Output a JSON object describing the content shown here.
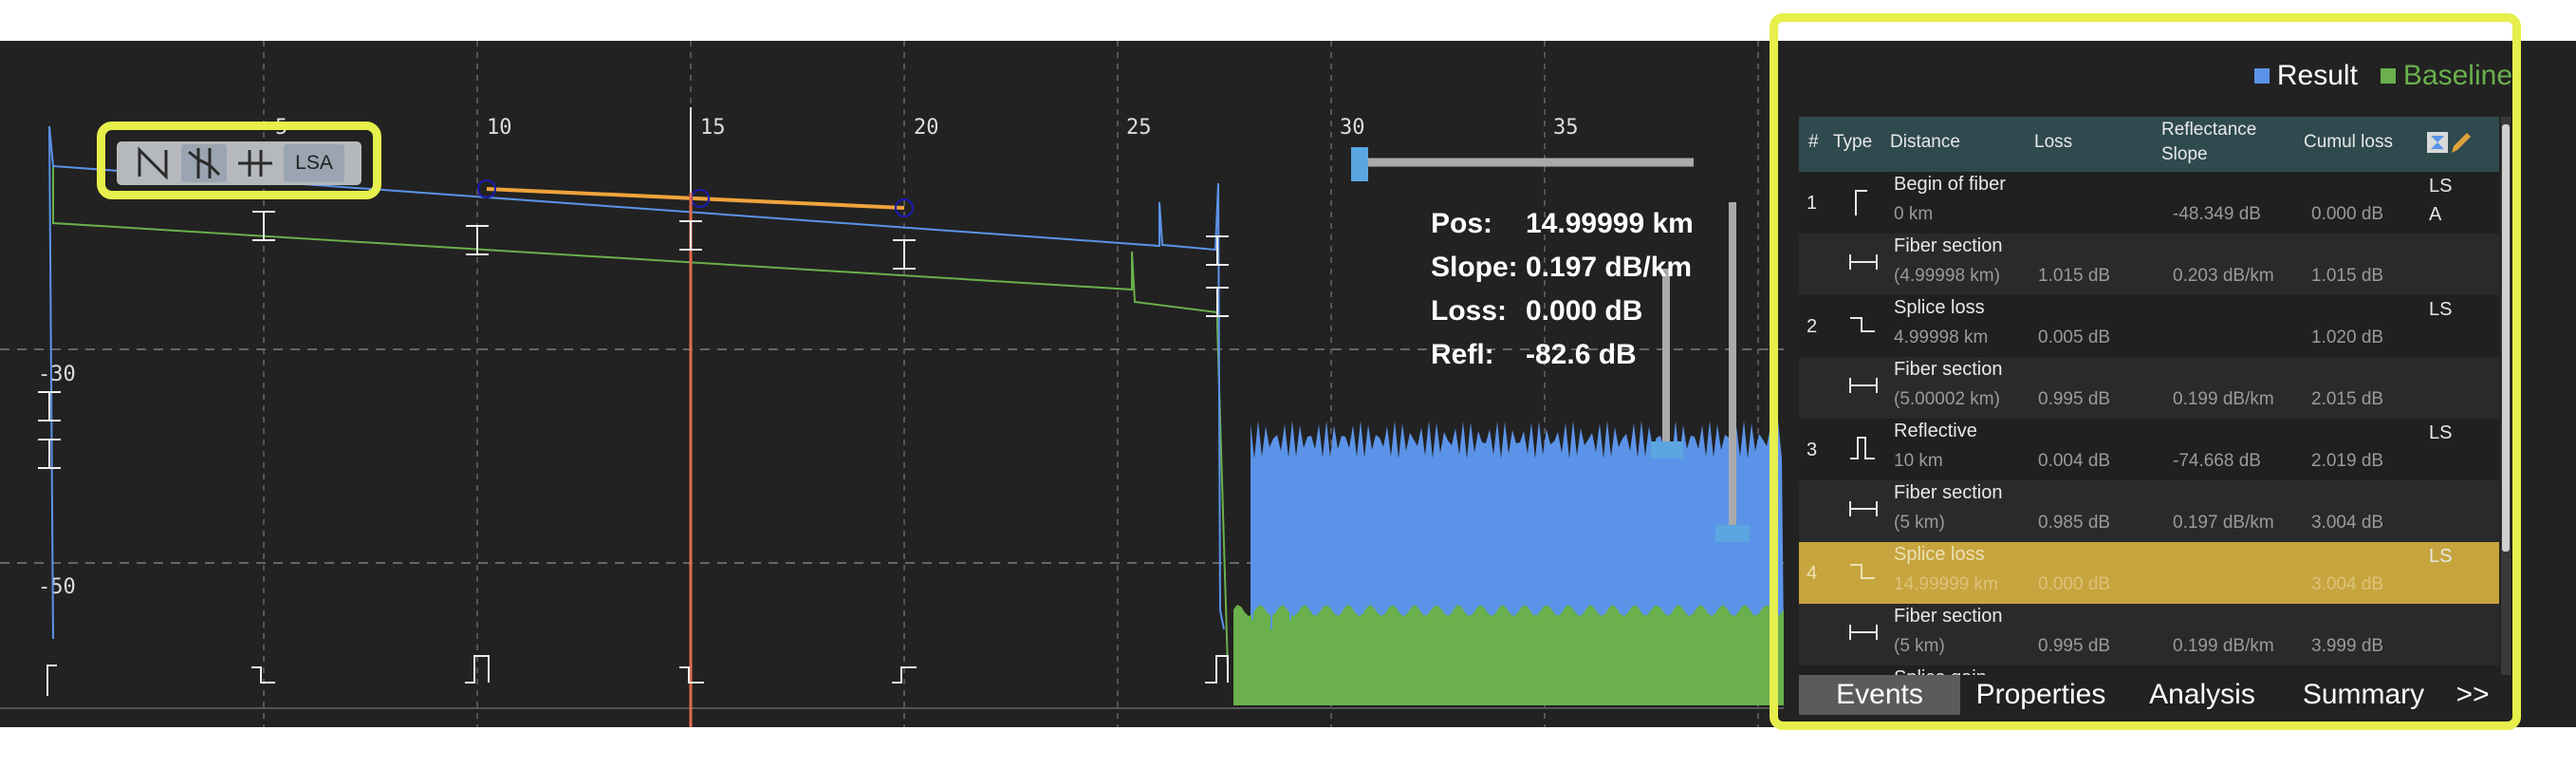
{
  "graph": {
    "x_axis": {
      "ticks": [
        "5",
        "10",
        "15",
        "20",
        "25",
        "30",
        "35"
      ]
    },
    "y_axis": {
      "ticks": [
        "-30",
        "-50"
      ]
    },
    "colors": {
      "result": "#5b93e8",
      "baseline": "#6ab04c",
      "section": "#f0a33c",
      "marker": "#e06b4b"
    }
  },
  "toolbar": {
    "buttons": [
      {
        "name": "auto-slope-tool",
        "icon": "slope-icon"
      },
      {
        "name": "splice-loss-tool",
        "icon": "splice-loss-icon"
      },
      {
        "name": "two-point-tool",
        "icon": "two-point-icon"
      }
    ],
    "lsa_label": "LSA"
  },
  "readout": {
    "pos_label": "Pos:",
    "pos_value": "14.99999 km",
    "slope_label": "Slope:",
    "slope_value": "0.197 dB/km",
    "loss_label": "Loss:",
    "loss_value": "0.000 dB",
    "refl_label": "Refl:",
    "refl_value": "-82.6 dB"
  },
  "legend": [
    {
      "label": "Result",
      "color": "#5b93e8"
    },
    {
      "label": "Baseline",
      "color": "#6ab04c"
    }
  ],
  "events_table": {
    "headers": {
      "num": "#",
      "type": "Type",
      "distance": "Distance",
      "loss": "Loss",
      "refl_line1": "Reflectance",
      "refl_line2": "Slope",
      "cumul": "Cumul loss"
    },
    "rows": [
      {
        "num": "1",
        "icon": "begin-of-fiber-icon",
        "name": "Begin of fiber",
        "distance": "0 km",
        "loss": "",
        "refl": "-48.349 dB",
        "cumul": "0.000 dB",
        "flag1": "LS",
        "flag2": "A"
      },
      {
        "num": "",
        "icon": "fiber-section-icon",
        "name": "Fiber section",
        "distance": "(4.99998 km)",
        "loss": "1.015 dB",
        "refl": "0.203 dB/km",
        "cumul": "1.015 dB",
        "flag1": "",
        "flag2": ""
      },
      {
        "num": "2",
        "icon": "splice-loss-event-icon",
        "name": "Splice loss",
        "distance": "4.99998 km",
        "loss": "0.005 dB",
        "refl": "",
        "cumul": "1.020 dB",
        "flag1": "LS",
        "flag2": ""
      },
      {
        "num": "",
        "icon": "fiber-section-icon",
        "name": "Fiber section",
        "distance": "(5.00002 km)",
        "loss": "0.995 dB",
        "refl": "0.199 dB/km",
        "cumul": "2.015 dB",
        "flag1": "",
        "flag2": ""
      },
      {
        "num": "3",
        "icon": "reflective-event-icon",
        "name": "Reflective",
        "distance": "10 km",
        "loss": "0.004 dB",
        "refl": "-74.668 dB",
        "cumul": "2.019 dB",
        "flag1": "LS",
        "flag2": ""
      },
      {
        "num": "",
        "icon": "fiber-section-icon",
        "name": "Fiber section",
        "distance": "(5 km)",
        "loss": "0.985 dB",
        "refl": "0.197 dB/km",
        "cumul": "3.004 dB",
        "flag1": "",
        "flag2": ""
      },
      {
        "num": "4",
        "icon": "splice-loss-event-icon",
        "name": "Splice loss",
        "distance": "14.99999 km",
        "loss": "0.000 dB",
        "refl": "",
        "cumul": "3.004 dB",
        "flag1": "LS",
        "flag2": ""
      },
      {
        "num": "",
        "icon": "fiber-section-icon",
        "name": "Fiber section",
        "distance": "(5 km)",
        "loss": "0.995 dB",
        "refl": "0.199 dB/km",
        "cumul": "3.999 dB",
        "flag1": "",
        "flag2": ""
      },
      {
        "num": "",
        "icon": "splice-gain-event-icon",
        "name": "Splice gain",
        "distance": "",
        "loss": "",
        "refl": "",
        "cumul": "",
        "flag1": "",
        "flag2": ""
      }
    ],
    "selected_row": 6
  },
  "tabs": [
    {
      "label": "Events",
      "active": true
    },
    {
      "label": "Properties",
      "active": false
    },
    {
      "label": "Analysis",
      "active": false
    },
    {
      "label": "Summary",
      "active": false
    },
    {
      "label": ">>",
      "active": false
    }
  ]
}
